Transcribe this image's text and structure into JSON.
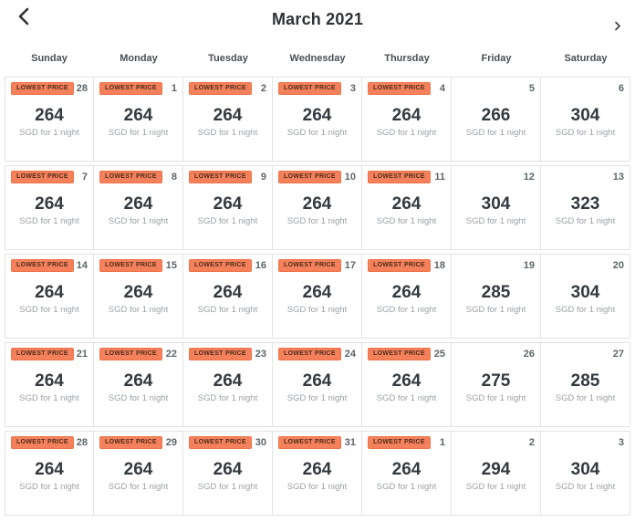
{
  "header": {
    "title": "March 2021",
    "prev_icon": "chevron-left-icon",
    "next_icon": "chevron-right-icon"
  },
  "weekdays": [
    "Sunday",
    "Monday",
    "Tuesday",
    "Wednesday",
    "Thursday",
    "Friday",
    "Saturday"
  ],
  "badge_label": "LOWEST PRICE",
  "price_unit": "SGD for 1 night",
  "currency": "SGD",
  "colors": {
    "badge_bg": "#F5815C",
    "badge_border": "#EE7247",
    "badge_text": "#4D2C1A",
    "price_text": "#333A40",
    "muted_text": "#9BA1A6",
    "grid_border": "#E3E3E3"
  },
  "weeks": [
    [
      {
        "date": 28,
        "price": 264,
        "lowest": true
      },
      {
        "date": 1,
        "price": 264,
        "lowest": true
      },
      {
        "date": 2,
        "price": 264,
        "lowest": true
      },
      {
        "date": 3,
        "price": 264,
        "lowest": true
      },
      {
        "date": 4,
        "price": 264,
        "lowest": true
      },
      {
        "date": 5,
        "price": 266,
        "lowest": false
      },
      {
        "date": 6,
        "price": 304,
        "lowest": false
      }
    ],
    [
      {
        "date": 7,
        "price": 264,
        "lowest": true
      },
      {
        "date": 8,
        "price": 264,
        "lowest": true
      },
      {
        "date": 9,
        "price": 264,
        "lowest": true
      },
      {
        "date": 10,
        "price": 264,
        "lowest": true
      },
      {
        "date": 11,
        "price": 264,
        "lowest": true
      },
      {
        "date": 12,
        "price": 304,
        "lowest": false
      },
      {
        "date": 13,
        "price": 323,
        "lowest": false
      }
    ],
    [
      {
        "date": 14,
        "price": 264,
        "lowest": true
      },
      {
        "date": 15,
        "price": 264,
        "lowest": true
      },
      {
        "date": 16,
        "price": 264,
        "lowest": true
      },
      {
        "date": 17,
        "price": 264,
        "lowest": true
      },
      {
        "date": 18,
        "price": 264,
        "lowest": true
      },
      {
        "date": 19,
        "price": 285,
        "lowest": false
      },
      {
        "date": 20,
        "price": 304,
        "lowest": false
      }
    ],
    [
      {
        "date": 21,
        "price": 264,
        "lowest": true
      },
      {
        "date": 22,
        "price": 264,
        "lowest": true
      },
      {
        "date": 23,
        "price": 264,
        "lowest": true
      },
      {
        "date": 24,
        "price": 264,
        "lowest": true
      },
      {
        "date": 25,
        "price": 264,
        "lowest": true
      },
      {
        "date": 26,
        "price": 275,
        "lowest": false
      },
      {
        "date": 27,
        "price": 285,
        "lowest": false
      }
    ],
    [
      {
        "date": 28,
        "price": 264,
        "lowest": true
      },
      {
        "date": 29,
        "price": 264,
        "lowest": true
      },
      {
        "date": 30,
        "price": 264,
        "lowest": true
      },
      {
        "date": 31,
        "price": 264,
        "lowest": true
      },
      {
        "date": 1,
        "price": 264,
        "lowest": true
      },
      {
        "date": 2,
        "price": 294,
        "lowest": false
      },
      {
        "date": 3,
        "price": 304,
        "lowest": false
      }
    ]
  ]
}
